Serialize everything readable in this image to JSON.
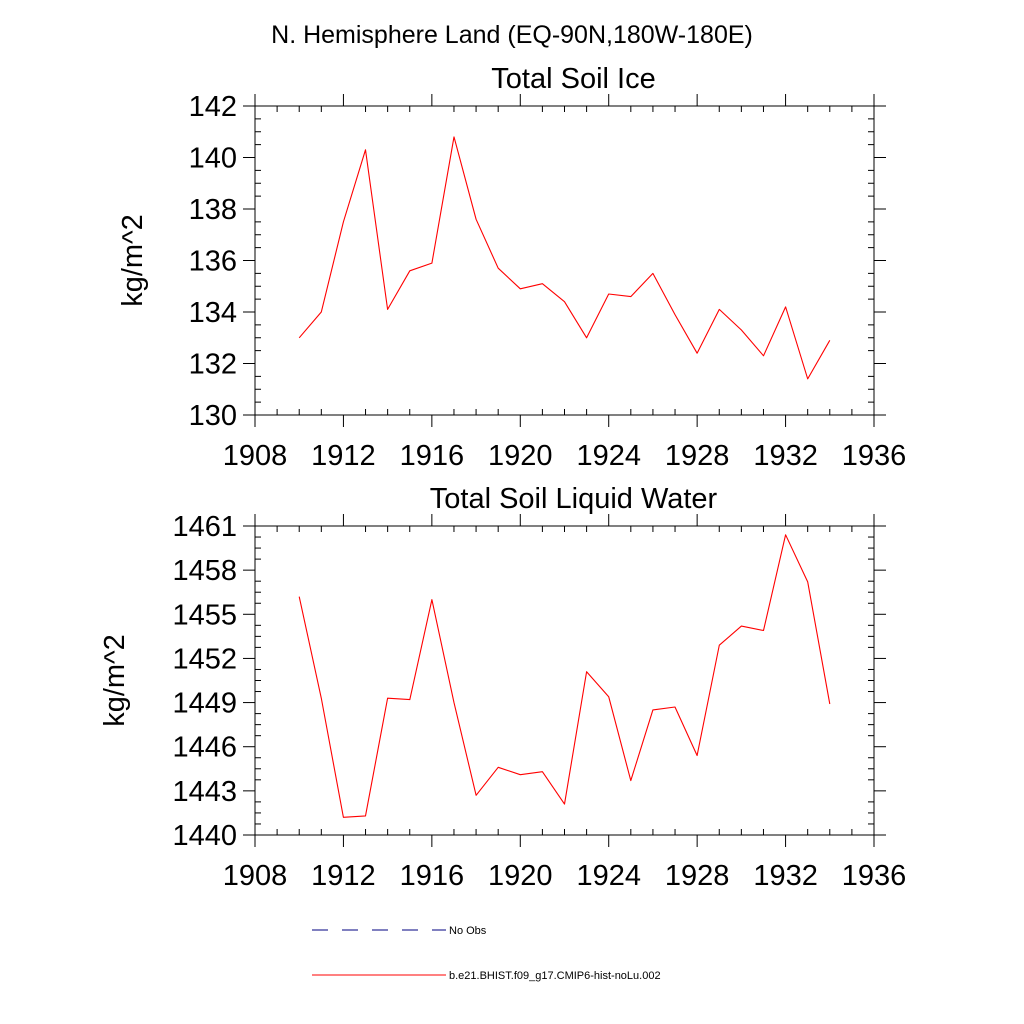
{
  "header": {
    "title": "N. Hemisphere Land (EQ-90N,180W-180E)"
  },
  "chart_data": [
    {
      "type": "line",
      "title": "Total Soil Ice",
      "xlabel": "",
      "ylabel": "kg/m^2",
      "xlim": [
        1908,
        1936
      ],
      "ylim": [
        130,
        142
      ],
      "xticks": [
        1908,
        1912,
        1916,
        1920,
        1924,
        1928,
        1932,
        1936
      ],
      "yticks": [
        130,
        132,
        134,
        136,
        138,
        140,
        142
      ],
      "grid": false,
      "series": [
        {
          "name": "b.e21.BHIST.f09_g17.CMIP6-hist-noLu.002",
          "color": "#ff0000",
          "x": [
            1910,
            1911,
            1912,
            1913,
            1914,
            1915,
            1916,
            1917,
            1918,
            1919,
            1920,
            1921,
            1922,
            1923,
            1924,
            1925,
            1926,
            1927,
            1928,
            1929,
            1930,
            1931,
            1932,
            1933,
            1934
          ],
          "y": [
            133.0,
            134.0,
            137.5,
            140.3,
            134.1,
            135.6,
            135.9,
            140.8,
            137.6,
            135.7,
            134.9,
            135.1,
            134.4,
            133.0,
            134.7,
            134.6,
            135.5,
            133.9,
            132.4,
            134.1,
            133.3,
            132.3,
            134.2,
            131.4,
            132.9
          ]
        }
      ]
    },
    {
      "type": "line",
      "title": "Total Soil Liquid Water",
      "xlabel": "",
      "ylabel": "kg/m^2",
      "xlim": [
        1908,
        1936
      ],
      "ylim": [
        1440,
        1461
      ],
      "xticks": [
        1908,
        1912,
        1916,
        1920,
        1924,
        1928,
        1932,
        1936
      ],
      "yticks": [
        1440,
        1443,
        1446,
        1449,
        1452,
        1455,
        1458,
        1461
      ],
      "grid": false,
      "series": [
        {
          "name": "b.e21.BHIST.f09_g17.CMIP6-hist-noLu.002",
          "color": "#ff0000",
          "x": [
            1910,
            1911,
            1912,
            1913,
            1914,
            1915,
            1916,
            1917,
            1918,
            1919,
            1920,
            1921,
            1922,
            1923,
            1924,
            1925,
            1926,
            1927,
            1928,
            1929,
            1930,
            1931,
            1932,
            1933,
            1934
          ],
          "y": [
            1456.2,
            1449.3,
            1441.2,
            1441.3,
            1449.3,
            1449.2,
            1456.0,
            1449.0,
            1442.7,
            1444.6,
            1444.1,
            1444.3,
            1442.1,
            1451.1,
            1449.4,
            1443.7,
            1448.5,
            1448.7,
            1445.4,
            1452.9,
            1454.2,
            1453.9,
            1460.4,
            1457.2,
            1448.9
          ]
        }
      ]
    }
  ],
  "legend": [
    {
      "label": "No Obs",
      "style": "dashed",
      "color": "#000080"
    },
    {
      "label": "b.e21.BHIST.f09_g17.CMIP6-hist-noLu.002",
      "style": "solid",
      "color": "#ff0000"
    }
  ]
}
